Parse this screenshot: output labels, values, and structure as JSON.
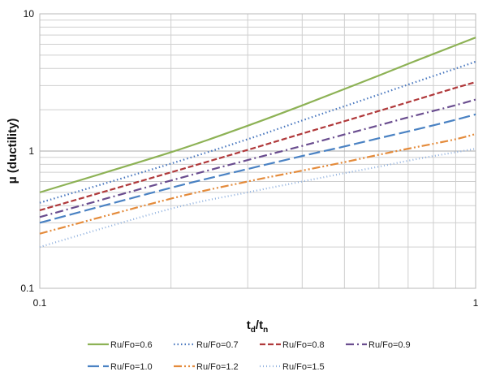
{
  "chart_data": {
    "type": "line",
    "title": "",
    "xlabel_main": "t",
    "xlabel_sub1": "d",
    "xlabel_mid": "/t",
    "xlabel_sub2": "n",
    "ylabel": "μ (ductility)",
    "xscale": "log",
    "yscale": "log",
    "xlim": [
      0.1,
      1
    ],
    "ylim": [
      0.1,
      10
    ],
    "xticks": [
      "0.1",
      "1"
    ],
    "yticks": [
      "0.1",
      "1",
      "10"
    ],
    "grid": true,
    "legend_position": "bottom",
    "x": [
      0.1,
      0.2,
      0.3,
      0.4,
      0.5,
      0.6,
      0.7,
      0.8,
      0.9,
      1.0
    ],
    "series": [
      {
        "name": "Ru/Fo=0.6",
        "color": "#8DB255",
        "dash": "solid",
        "values": [
          0.5,
          0.98,
          1.53,
          2.15,
          2.83,
          3.55,
          4.32,
          5.1,
          5.9,
          6.72
        ]
      },
      {
        "name": "Ru/Fo=0.7",
        "color": "#4A78BF",
        "dash": "dot",
        "values": [
          0.42,
          0.81,
          1.22,
          1.67,
          2.12,
          2.58,
          3.05,
          3.52,
          3.99,
          4.48
        ]
      },
      {
        "name": "Ru/Fo=0.8",
        "color": "#B0393B",
        "dash": "dash",
        "values": [
          0.37,
          0.7,
          1.02,
          1.34,
          1.65,
          1.96,
          2.27,
          2.58,
          2.89,
          3.18
        ]
      },
      {
        "name": "Ru/Fo=0.9",
        "color": "#6A4D8F",
        "dash": "dashdot",
        "values": [
          0.33,
          0.61,
          0.86,
          1.09,
          1.32,
          1.54,
          1.76,
          1.96,
          2.16,
          2.37
        ]
      },
      {
        "name": "Ru/Fo=1.0",
        "color": "#4A82C3",
        "dash": "longdash",
        "values": [
          0.3,
          0.54,
          0.74,
          0.92,
          1.08,
          1.24,
          1.39,
          1.54,
          1.69,
          1.85
        ]
      },
      {
        "name": "Ru/Fo=1.2",
        "color": "#E48B3B",
        "dash": "dashdotdot",
        "values": [
          0.25,
          0.45,
          0.6,
          0.72,
          0.83,
          0.94,
          1.04,
          1.13,
          1.22,
          1.33
        ]
      },
      {
        "name": "Ru/Fo=1.5",
        "color": "#8FB0DE",
        "dash": "finedot",
        "values": [
          0.2,
          0.38,
          0.5,
          0.6,
          0.69,
          0.77,
          0.85,
          0.92,
          0.98,
          1.04
        ]
      }
    ]
  }
}
